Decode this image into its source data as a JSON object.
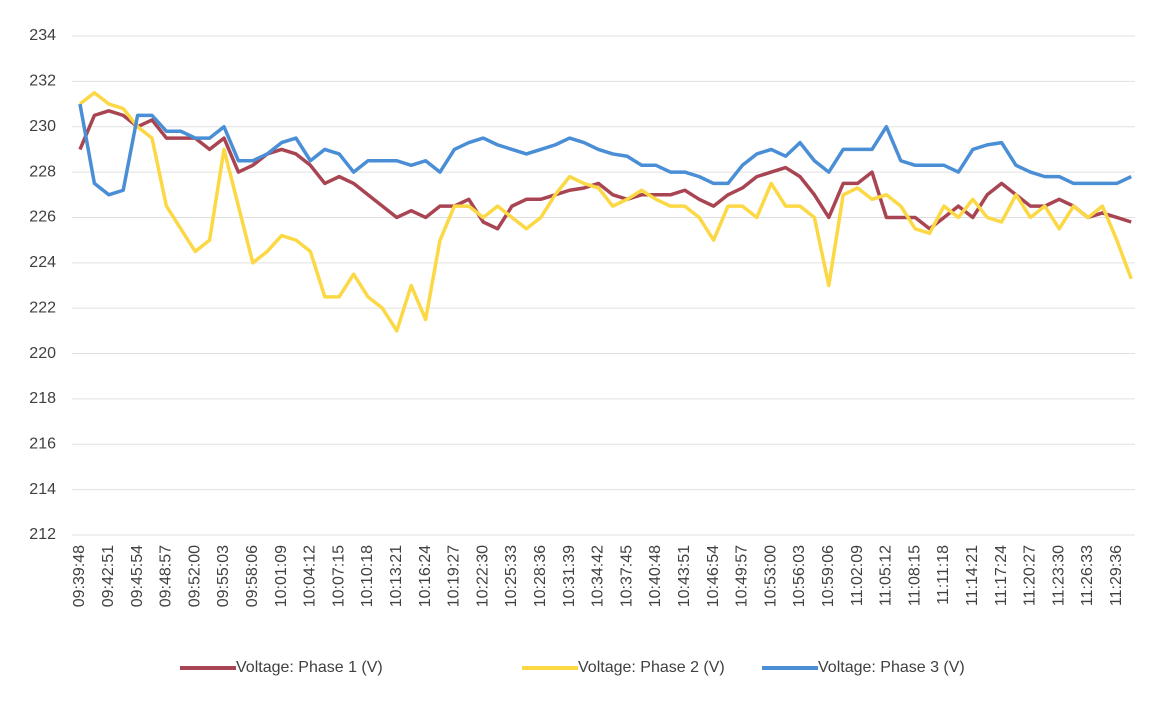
{
  "chart_data": {
    "type": "line",
    "categories": [
      "09:39:48",
      null,
      "09:42:51",
      null,
      "09:45:54",
      null,
      "09:48:57",
      null,
      "09:52:00",
      null,
      "09:55:03",
      null,
      "09:58:06",
      null,
      "10:01:09",
      null,
      "10:04:12",
      null,
      "10:07:15",
      null,
      "10:10:18",
      null,
      "10:13:21",
      null,
      "10:16:24",
      null,
      "10:19:27",
      null,
      "10:22:30",
      null,
      "10:25:33",
      null,
      "10:28:36",
      null,
      "10:31:39",
      null,
      "10:34:42",
      null,
      "10:37:45",
      null,
      "10:40:48",
      null,
      "10:43:51",
      null,
      "10:46:54",
      null,
      "10:49:57",
      null,
      "10:53:00",
      null,
      "10:56:03",
      null,
      "10:59:06",
      null,
      "11:02:09",
      null,
      "11:05:12",
      null,
      "11:08:15",
      null,
      "11:11:18",
      null,
      "11:14:21",
      null,
      "11:17:24",
      null,
      "11:20:27",
      null,
      "11:23:30",
      null,
      "11:26:33",
      null,
      "11:29:36",
      null
    ],
    "series": [
      {
        "name": "Voltage: Phase 1 (V)",
        "color": "#a94552",
        "values": [
          229,
          230.5,
          230.7,
          230.5,
          230,
          230.3,
          229.5,
          229.5,
          229.5,
          229,
          229.5,
          228,
          228.3,
          228.8,
          229,
          228.8,
          228.3,
          227.5,
          227.8,
          227.5,
          227,
          226.5,
          226,
          226.3,
          226,
          226.5,
          226.5,
          226.8,
          225.8,
          225.5,
          226.5,
          226.8,
          226.8,
          227,
          227.2,
          227.3,
          227.5,
          227,
          226.8,
          227,
          227,
          227,
          227.2,
          226.8,
          226.5,
          227,
          227.3,
          227.8,
          228,
          228.2,
          227.8,
          227,
          226,
          227.5,
          227.5,
          228,
          226,
          226,
          226,
          225.5,
          226,
          226.5,
          226,
          227,
          227.5,
          227,
          226.5,
          226.5,
          226.8,
          226.5,
          226,
          226.2,
          226,
          225.8
        ]
      },
      {
        "name": "Voltage: Phase 2 (V)",
        "color": "#fcd845",
        "values": [
          231,
          231.5,
          231,
          230.8,
          230,
          229.5,
          226.5,
          225.5,
          224.5,
          225,
          229,
          226.5,
          224,
          224.5,
          225.2,
          225,
          224.5,
          222.5,
          222.5,
          223.5,
          222.5,
          222,
          221,
          223,
          221.5,
          225,
          226.5,
          226.5,
          226,
          226.5,
          226,
          225.5,
          226,
          227,
          227.8,
          227.5,
          227.3,
          226.5,
          226.8,
          227.2,
          226.8,
          226.5,
          226.5,
          226,
          225,
          226.5,
          226.5,
          226,
          227.5,
          226.5,
          226.5,
          226,
          223,
          227,
          227.3,
          226.8,
          227,
          226.5,
          225.5,
          225.3,
          226.5,
          226,
          226.8,
          226,
          225.8,
          227,
          226,
          226.5,
          225.5,
          226.5,
          226,
          226.5,
          225,
          223.3
        ]
      },
      {
        "name": "Voltage: Phase 3 (V)",
        "color": "#4a8ed6",
        "values": [
          231,
          227.5,
          227,
          227.2,
          230.5,
          230.5,
          229.8,
          229.8,
          229.5,
          229.5,
          230,
          228.5,
          228.5,
          228.8,
          229.3,
          229.5,
          228.5,
          229,
          228.8,
          228,
          228.5,
          228.5,
          228.5,
          228.3,
          228.5,
          228,
          229,
          229.3,
          229.5,
          229.2,
          229,
          228.8,
          229,
          229.2,
          229.5,
          229.3,
          229,
          228.8,
          228.7,
          228.3,
          228.3,
          228,
          228,
          227.8,
          227.5,
          227.5,
          228.3,
          228.8,
          229,
          228.7,
          229.3,
          228.5,
          228,
          229,
          229,
          229,
          230,
          228.5,
          228.3,
          228.3,
          228.3,
          228,
          229,
          229.2,
          229.3,
          228.3,
          228,
          227.8,
          227.8,
          227.5,
          227.5,
          227.5,
          227.5,
          227.8
        ]
      }
    ],
    "ylim": [
      212,
      234
    ],
    "yticks": [
      212,
      214,
      216,
      218,
      220,
      222,
      224,
      226,
      228,
      230,
      232,
      234
    ],
    "grid": true,
    "legend": "bottom"
  }
}
